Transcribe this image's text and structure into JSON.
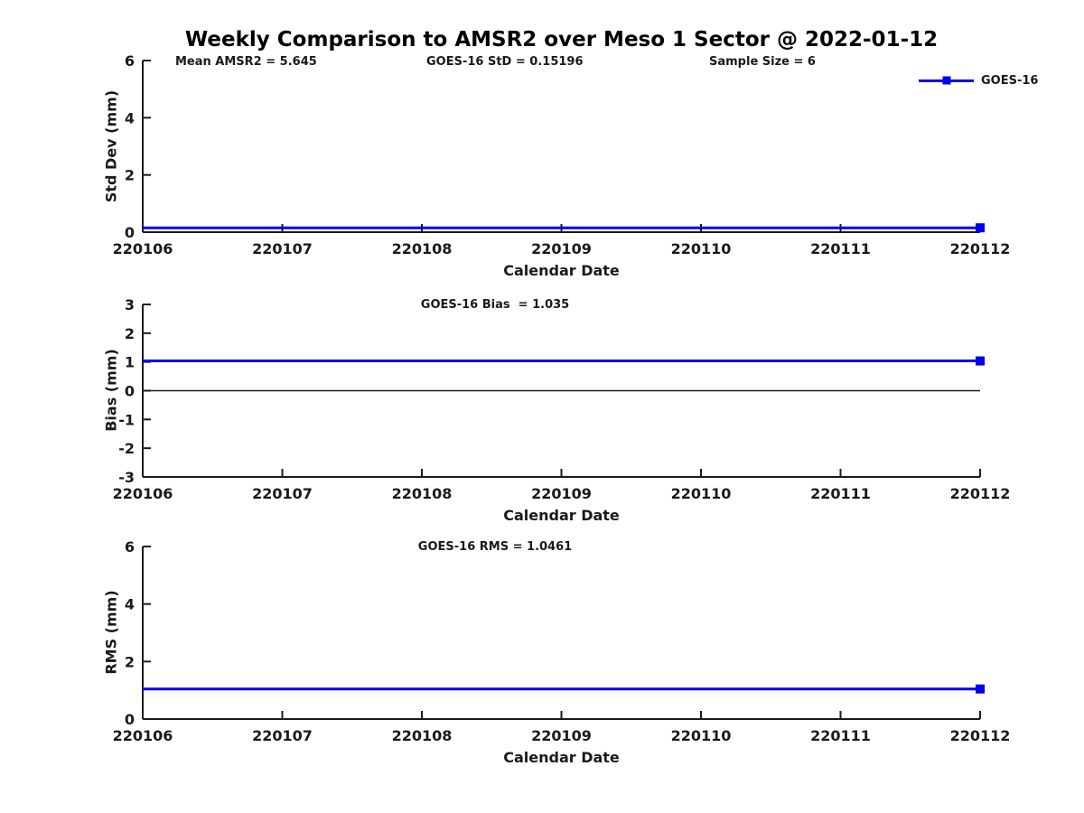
{
  "title": "Weekly Comparison to AMSR2 over Meso 1 Sector @ 2022-01-12",
  "legend": {
    "label": "GOES-16",
    "color": "#0000ee",
    "marker": "square",
    "position": "top-right"
  },
  "colors": {
    "series": "#0000ee",
    "axis": "#1a1a1a",
    "text": "#1a1a1a",
    "zero_line": "#1a1a1a",
    "background": "#ffffff"
  },
  "chart_data": [
    {
      "type": "line",
      "title": "",
      "annotations": [
        "Mean AMSR2 = 5.645",
        "GOES-16 StD = 0.15196",
        "Sample Size = 6"
      ],
      "xlabel": "Calendar Date",
      "ylabel": "Std Dev (mm)",
      "x": [
        220106,
        220107,
        220108,
        220109,
        220110,
        220111,
        220112
      ],
      "xticklabels": [
        "220106",
        "220107",
        "220108",
        "220109",
        "220110",
        "220111",
        "220112"
      ],
      "ylim": [
        0,
        6
      ],
      "yticks": [
        0,
        2,
        4,
        6
      ],
      "grid": false,
      "zero_line": false,
      "series": [
        {
          "name": "GOES-16",
          "color": "#0000ee",
          "marker": "square",
          "marker_last_only": true,
          "values": [
            0.15196,
            0.15196,
            0.15196,
            0.15196,
            0.15196,
            0.15196,
            0.15196
          ]
        }
      ]
    },
    {
      "type": "line",
      "title": "GOES-16 Bias  = 1.035",
      "annotations": [],
      "xlabel": "Calendar Date",
      "ylabel": "Bias (mm)",
      "x": [
        220106,
        220107,
        220108,
        220109,
        220110,
        220111,
        220112
      ],
      "xticklabels": [
        "220106",
        "220107",
        "220108",
        "220109",
        "220110",
        "220111",
        "220112"
      ],
      "ylim": [
        -3,
        3
      ],
      "yticks": [
        -3,
        -2,
        -1,
        0,
        1,
        2,
        3
      ],
      "grid": false,
      "zero_line": true,
      "series": [
        {
          "name": "GOES-16",
          "color": "#0000ee",
          "marker": "square",
          "marker_last_only": true,
          "values": [
            1.035,
            1.035,
            1.035,
            1.035,
            1.035,
            1.035,
            1.035
          ]
        }
      ]
    },
    {
      "type": "line",
      "title": "GOES-16 RMS = 1.0461",
      "annotations": [],
      "xlabel": "Calendar Date",
      "ylabel": "RMS (mm)",
      "x": [
        220106,
        220107,
        220108,
        220109,
        220110,
        220111,
        220112
      ],
      "xticklabels": [
        "220106",
        "220107",
        "220108",
        "220109",
        "220110",
        "220111",
        "220112"
      ],
      "ylim": [
        0,
        6
      ],
      "yticks": [
        0,
        2,
        4,
        6
      ],
      "grid": false,
      "zero_line": false,
      "series": [
        {
          "name": "GOES-16",
          "color": "#0000ee",
          "marker": "square",
          "marker_last_only": true,
          "values": [
            1.0461,
            1.0461,
            1.0461,
            1.0461,
            1.0461,
            1.0461,
            1.0461
          ]
        }
      ]
    }
  ]
}
